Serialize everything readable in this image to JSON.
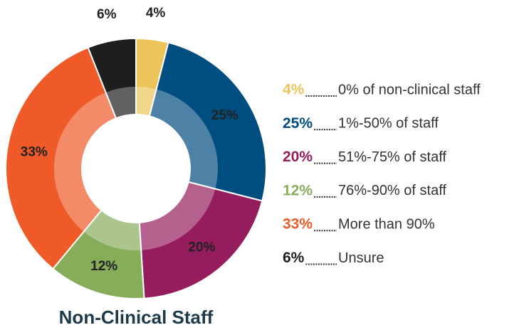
{
  "chart_data": {
    "type": "pie",
    "donut": true,
    "title": "Non-Clinical Staff",
    "categories": [
      "0% of non-clinical staff",
      "1%-50% of staff",
      "51%-75% of staff",
      "76%-90% of staff",
      "More than 90%",
      "Unsure"
    ],
    "values": [
      4,
      25,
      20,
      12,
      33,
      6
    ],
    "value_labels": [
      "4%",
      "25%",
      "20%",
      "12%",
      "33%",
      "6%"
    ],
    "colors": [
      "#ecc55a",
      "#004d80",
      "#951d5e",
      "#87ad5b",
      "#f05a28",
      "#1e1e1e"
    ],
    "legend_colors": [
      "#ecc55a",
      "#004d80",
      "#951d5e",
      "#87ad5b",
      "#f05a28",
      "#1e1e1e"
    ],
    "legend": "right"
  }
}
